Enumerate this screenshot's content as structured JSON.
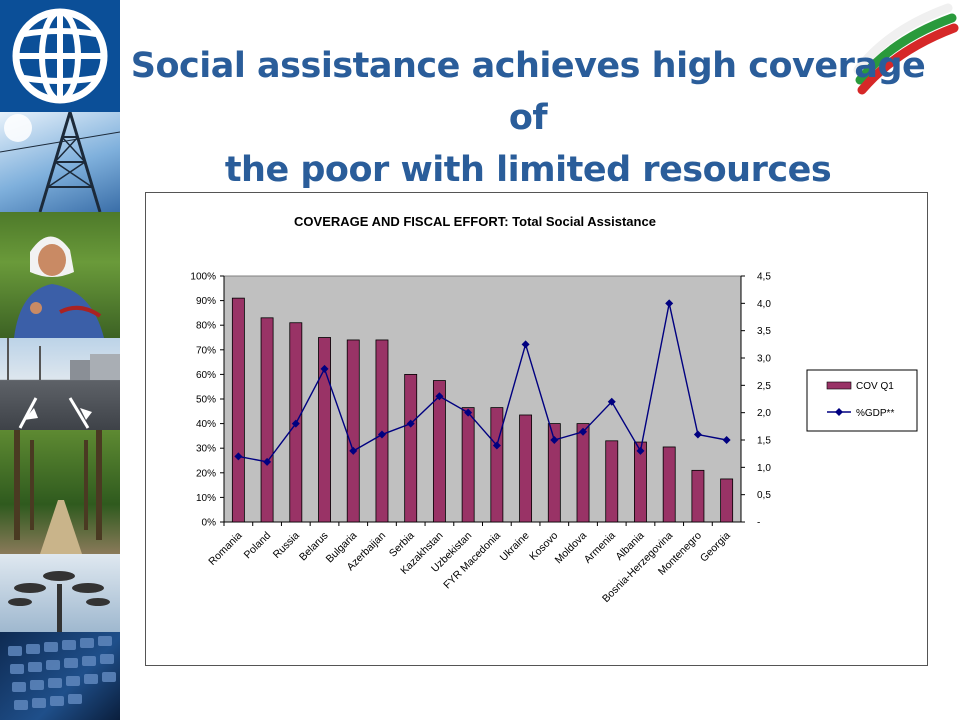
{
  "slide": {
    "title_line1": "Social assistance achieves high coverage of",
    "title_line2": "the poor with limited resources"
  },
  "colors": {
    "title": "#2a5d9a",
    "bar": "#993366",
    "line": "#000080",
    "plot_area": "#c0c0c0"
  },
  "chart_data": {
    "type": "bar",
    "title": "COVERAGE AND FISCAL EFFORT: Total Social Assistance",
    "categories": [
      "Romania",
      "Poland",
      "Russia",
      "Belarus",
      "Bulgaria",
      "Azerbaijan",
      "Serbia",
      "Kazakhstan",
      "Uzbekistan",
      "FYR Macedonia",
      "Ukraine",
      "Kosovo",
      "Moldova",
      "Armenia",
      "Albania",
      "Bosnia-Herzegovina",
      "Montenegro",
      "Georgia"
    ],
    "series": [
      {
        "name": "COV Q1",
        "type": "bar",
        "axis": "left",
        "values": [
          91,
          83,
          81,
          75,
          74,
          74,
          60,
          57.5,
          46.5,
          46.5,
          43.5,
          40,
          40,
          33,
          32.5,
          30.5,
          21,
          17.5
        ]
      },
      {
        "name": "%GDP**",
        "type": "line",
        "axis": "right",
        "values": [
          1.2,
          1.1,
          1.8,
          2.8,
          1.3,
          1.6,
          1.8,
          2.3,
          2.0,
          1.4,
          3.25,
          1.5,
          1.65,
          2.2,
          1.3,
          4.0,
          1.6,
          1.5
        ]
      }
    ],
    "y_left": {
      "range": [
        0,
        100
      ],
      "ticks": [
        "0%",
        "10%",
        "20%",
        "30%",
        "40%",
        "50%",
        "60%",
        "70%",
        "80%",
        "90%",
        "100%"
      ]
    },
    "y_right": {
      "range": [
        0,
        4.5
      ],
      "ticks": [
        "-",
        "0,5",
        "1,0",
        "1,5",
        "2,0",
        "2,5",
        "3,0",
        "3,5",
        "4,0",
        "4,5"
      ]
    },
    "grid": false,
    "legend": "right"
  }
}
